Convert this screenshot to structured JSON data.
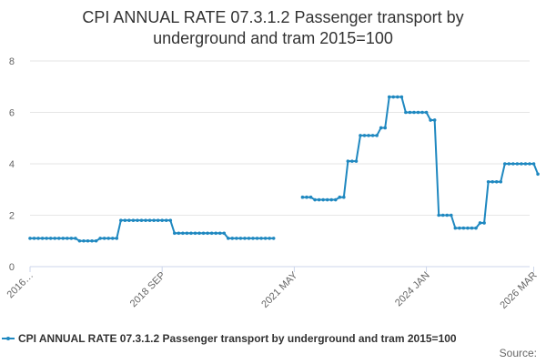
{
  "chart_data": {
    "type": "line",
    "title_lines": [
      "CPI ANNUAL RATE 07.3.1.2 Passenger transport by",
      "underground and tram 2015=100"
    ],
    "ylim": [
      0,
      8
    ],
    "yticks": [
      0,
      2,
      4,
      6,
      8
    ],
    "grid": true,
    "xlim": [
      0,
      121
    ],
    "xticks": [
      {
        "label": "2016…",
        "x": 0
      },
      {
        "label": "2018 SEP",
        "x": 32
      },
      {
        "label": "2021 MAY",
        "x": 64
      },
      {
        "label": "2024 JAN",
        "x": 96
      },
      {
        "label": "2026 MAR",
        "x": 122
      }
    ],
    "series": [
      {
        "name": "CPI ANNUAL RATE 07.3.1.2 Passenger transport by underground and tram 2015=100",
        "color": "#1f88c0",
        "segments": [
          {
            "start": 0,
            "values": [
              1.1,
              1.1,
              1.1,
              1.1,
              1.1,
              1.1,
              1.1,
              1.1,
              1.1,
              1.1,
              1.1,
              1.1,
              1.0,
              1.0,
              1.0,
              1.0,
              1.0,
              1.1,
              1.1,
              1.1,
              1.1,
              1.1,
              1.8,
              1.8,
              1.8,
              1.8,
              1.8,
              1.8,
              1.8,
              1.8,
              1.8,
              1.8,
              1.8,
              1.8,
              1.8,
              1.3,
              1.3,
              1.3,
              1.3,
              1.3,
              1.3,
              1.3,
              1.3,
              1.3,
              1.3,
              1.3,
              1.3,
              1.3,
              1.1,
              1.1,
              1.1,
              1.1,
              1.1,
              1.1,
              1.1,
              1.1,
              1.1,
              1.1,
              1.1,
              1.1
            ]
          },
          {
            "start": 66,
            "values": [
              2.7,
              2.7,
              2.7,
              2.6,
              2.6,
              2.6,
              2.6,
              2.6,
              2.6,
              2.7,
              2.7,
              4.1,
              4.1,
              4.1,
              5.1,
              5.1,
              5.1,
              5.1,
              5.1,
              5.4,
              5.4,
              6.6,
              6.6,
              6.6,
              6.6,
              6.0,
              6.0,
              6.0,
              6.0,
              6.0,
              6.0,
              5.7,
              5.7,
              2.0,
              2.0,
              2.0,
              2.0,
              1.5,
              1.5,
              1.5,
              1.5,
              1.5,
              1.5,
              1.7,
              1.7,
              3.3,
              3.3,
              3.3,
              3.3,
              4.0,
              4.0,
              4.0,
              4.0,
              4.0,
              4.0,
              4.0,
              4.0,
              3.6
            ]
          }
        ]
      }
    ]
  },
  "legend": {
    "label": "CPI ANNUAL RATE 07.3.1.2 Passenger transport by underground and tram 2015=100"
  },
  "credit": {
    "label": "Source:"
  }
}
